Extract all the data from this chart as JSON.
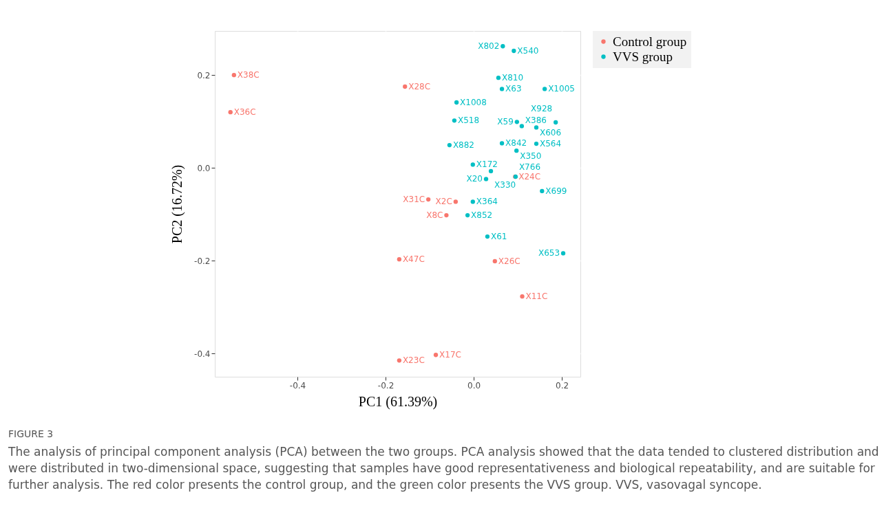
{
  "chart_data": {
    "type": "scatter",
    "xlabel": "PC1 (61.39%)",
    "ylabel": "PC2 (16.72%)",
    "xlim": [
      -0.5875,
      0.242
    ],
    "ylim": [
      -0.45,
      0.295
    ],
    "xticks": [
      -0.4,
      -0.2,
      {
        "value": 0,
        "label": "0.0"
      },
      0.2
    ],
    "yticks": [
      -0.4,
      -0.2,
      {
        "value": 0,
        "label": "0.0"
      },
      0.2
    ],
    "grid": true,
    "legend": "right",
    "marker": "circle",
    "series": [
      {
        "name": "Control group",
        "color": "#f8766d",
        "x": [
          -0.544,
          -0.552,
          -0.156,
          -0.103,
          -0.041,
          -0.062,
          -0.169,
          0.048,
          0.11,
          -0.086,
          -0.169,
          0.094
        ],
        "values": [
          0.2,
          0.12,
          0.175,
          -0.068,
          -0.073,
          -0.102,
          -0.197,
          -0.201,
          -0.277,
          -0.403,
          -0.415,
          -0.019
        ],
        "value_labels": [
          "X38C",
          "X36C",
          "X28C",
          "X31C",
          "X2C",
          "X8C",
          "X47C",
          "X26C",
          "X11C",
          "X17C",
          "X23C",
          "X24C"
        ]
      },
      {
        "name": "VVS group",
        "color": "#00bfc4",
        "x": [
          0.066,
          0.091,
          0.056,
          0.064,
          0.161,
          -0.039,
          -0.044,
          0.098,
          0.109,
          0.142,
          0.186,
          -0.055,
          0.064,
          0.142,
          0.097,
          -0.002,
          0.039,
          0.028,
          0.095,
          0.155,
          -0.002,
          -0.014,
          0.031,
          0.203
        ],
        "values": [
          0.262,
          0.252,
          0.194,
          0.17,
          0.17,
          0.141,
          0.102,
          0.099,
          0.09,
          0.087,
          0.098,
          0.049,
          0.053,
          0.052,
          0.037,
          0.007,
          -0.007,
          -0.024,
          -0.019,
          -0.05,
          -0.073,
          -0.102,
          -0.148,
          -0.184
        ],
        "value_labels": [
          "X802",
          "X540",
          "X810",
          "X63",
          "X1005",
          "X1008",
          "X518",
          "X59",
          "X386",
          "X606",
          "X928",
          "X882",
          "X842",
          "X564",
          "X350",
          "X172",
          "X330",
          "X20",
          "X766",
          "X699",
          "X364",
          "X852",
          "X61",
          "X653"
        ]
      }
    ],
    "annotations": [
      "FIGURE 3",
      "The analysis of principal component analysis (PCA) between the two groups. PCA analysis showed that the data tended to clustered distribution and were distributed in two-dimensional space, suggesting that samples have good representativeness and biological repeatability, and are suitable for further analysis. The red color presents the control group, and the green color presents the VVS group. VVS, vasovagal syncope."
    ]
  }
}
